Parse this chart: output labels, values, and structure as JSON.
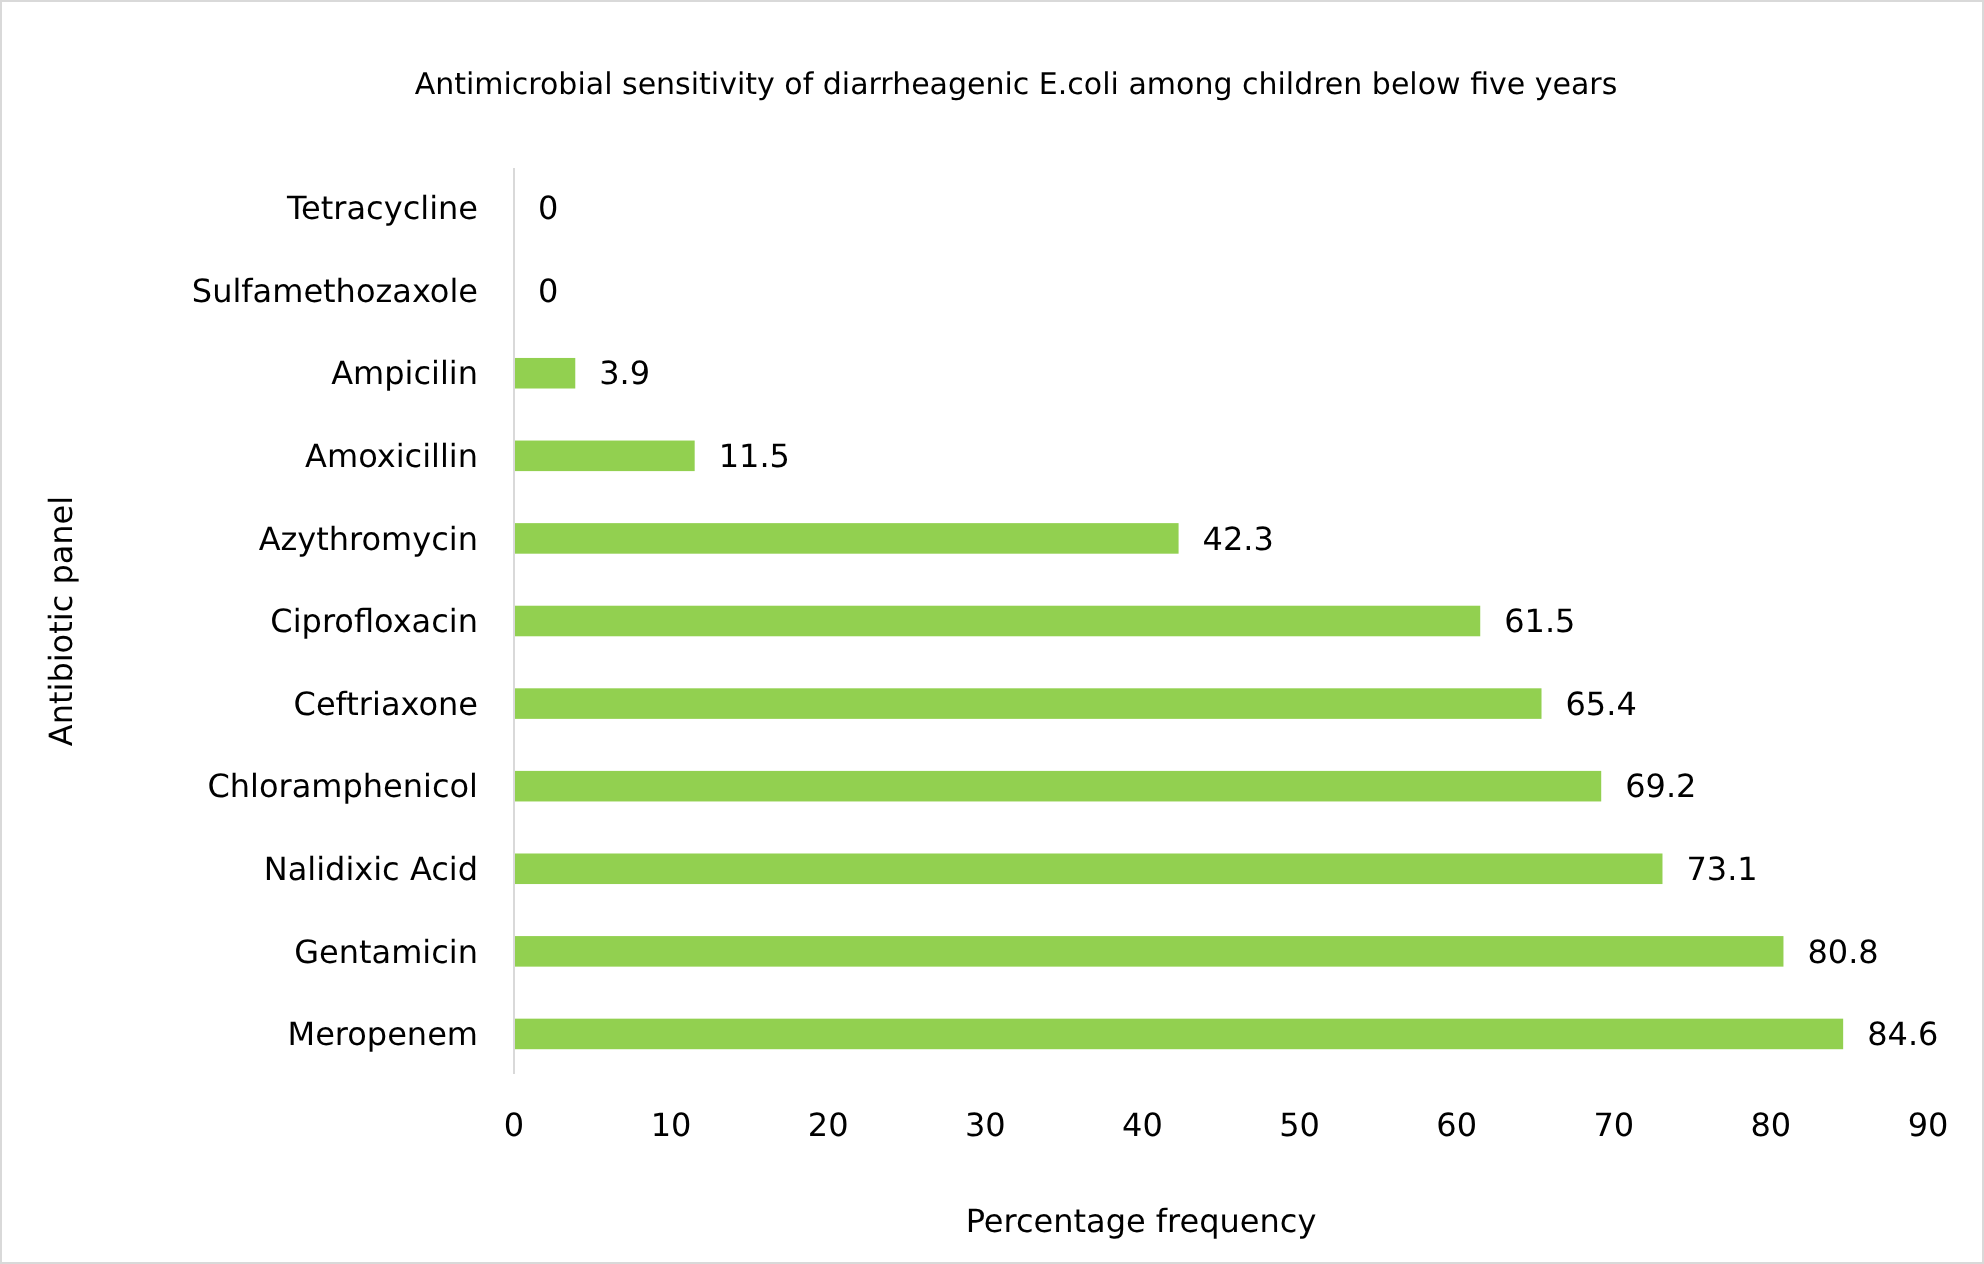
{
  "chart_data": {
    "type": "bar",
    "orientation": "horizontal",
    "title": "Antimicrobial sensitivity of diarrheagenic E.coli among children below five years",
    "xlabel": "Percentage frequency",
    "ylabel": "Antibiotic panel",
    "categories": [
      "Tetracycline",
      "Sulfamethozaxole",
      "Ampicilin",
      "Amoxicillin",
      "Azythromycin",
      "Ciprofloxacin",
      "Ceftriaxone",
      "Chloramphenicol",
      "Nalidixic Acid",
      "Gentamicin",
      "Meropenem"
    ],
    "values": [
      0,
      0,
      3.9,
      11.5,
      42.3,
      61.5,
      65.4,
      69.2,
      73.1,
      80.8,
      84.6
    ],
    "color": "#92d050",
    "xlim": [
      0,
      90
    ],
    "xticks": [
      0,
      10,
      20,
      30,
      40,
      50,
      60,
      70,
      80,
      90
    ],
    "data_labels": true
  }
}
